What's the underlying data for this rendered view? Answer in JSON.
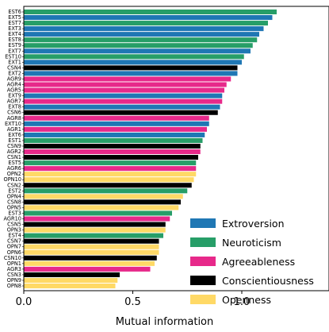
{
  "chart_data": {
    "type": "bar",
    "orientation": "horizontal",
    "xlabel": "Mutual information",
    "ylabel": "",
    "xlim": [
      0,
      1.4
    ],
    "x_ticks": [
      "0.0",
      "0.5",
      "1.0"
    ],
    "x_tick_values": [
      0,
      0.5,
      1.0
    ],
    "grid": false,
    "legend_position": "lower-right",
    "series": [
      {
        "name": "Extroversion",
        "color": "#1f77b4"
      },
      {
        "name": "Neuroticism",
        "color": "#279e68"
      },
      {
        "name": "Agreeableness",
        "color": "#e7298a"
      },
      {
        "name": "Conscientiousness",
        "color": "#000000"
      },
      {
        "name": "Openness",
        "color": "#ffd966"
      }
    ],
    "bars": [
      {
        "label": "EST6",
        "value": 1.16,
        "series": "Neuroticism"
      },
      {
        "label": "EXT5",
        "value": 1.14,
        "series": "Extroversion"
      },
      {
        "label": "EST7",
        "value": 1.12,
        "series": "Neuroticism"
      },
      {
        "label": "EXT3",
        "value": 1.1,
        "series": "Extroversion"
      },
      {
        "label": "EXT4",
        "value": 1.08,
        "series": "Extroversion"
      },
      {
        "label": "EST8",
        "value": 1.07,
        "series": "Neuroticism"
      },
      {
        "label": "EST9",
        "value": 1.05,
        "series": "Neuroticism"
      },
      {
        "label": "EXT7",
        "value": 1.04,
        "series": "Extroversion"
      },
      {
        "label": "EST10",
        "value": 1.01,
        "series": "Neuroticism"
      },
      {
        "label": "EXT1",
        "value": 1.0,
        "series": "Extroversion"
      },
      {
        "label": "CSN4",
        "value": 0.98,
        "series": "Conscientiousness"
      },
      {
        "label": "EXT2",
        "value": 0.98,
        "series": "Extroversion"
      },
      {
        "label": "AGR9",
        "value": 0.95,
        "series": "Agreeableness"
      },
      {
        "label": "AGR4",
        "value": 0.93,
        "series": "Agreeableness"
      },
      {
        "label": "AGR5",
        "value": 0.92,
        "series": "Agreeableness"
      },
      {
        "label": "EXT9",
        "value": 0.91,
        "series": "Extroversion"
      },
      {
        "label": "AGR7",
        "value": 0.91,
        "series": "Agreeableness"
      },
      {
        "label": "EXT8",
        "value": 0.9,
        "series": "Extroversion"
      },
      {
        "label": "CSN6",
        "value": 0.89,
        "series": "Conscientiousness"
      },
      {
        "label": "AGR8",
        "value": 0.85,
        "series": "Agreeableness"
      },
      {
        "label": "EXT10",
        "value": 0.85,
        "series": "Extroversion"
      },
      {
        "label": "AGR1",
        "value": 0.84,
        "series": "Agreeableness"
      },
      {
        "label": "EXT6",
        "value": 0.83,
        "series": "Extroversion"
      },
      {
        "label": "EST1",
        "value": 0.82,
        "series": "Neuroticism"
      },
      {
        "label": "CSN9",
        "value": 0.81,
        "series": "Conscientiousness"
      },
      {
        "label": "AGR2",
        "value": 0.81,
        "series": "Agreeableness"
      },
      {
        "label": "CSN1",
        "value": 0.8,
        "series": "Conscientiousness"
      },
      {
        "label": "EST5",
        "value": 0.79,
        "series": "Neuroticism"
      },
      {
        "label": "AGR6",
        "value": 0.79,
        "series": "Agreeableness"
      },
      {
        "label": "OPN2",
        "value": 0.79,
        "series": "Openness"
      },
      {
        "label": "OPN10",
        "value": 0.78,
        "series": "Openness"
      },
      {
        "label": "CSN2",
        "value": 0.77,
        "series": "Conscientiousness"
      },
      {
        "label": "EST2",
        "value": 0.75,
        "series": "Neuroticism"
      },
      {
        "label": "OPN4",
        "value": 0.73,
        "series": "Openness"
      },
      {
        "label": "CSN8",
        "value": 0.72,
        "series": "Conscientiousness"
      },
      {
        "label": "OPN5",
        "value": 0.71,
        "series": "Openness"
      },
      {
        "label": "EST3",
        "value": 0.68,
        "series": "Neuroticism"
      },
      {
        "label": "AGR10",
        "value": 0.67,
        "series": "Agreeableness"
      },
      {
        "label": "CSN5",
        "value": 0.65,
        "series": "Conscientiousness"
      },
      {
        "label": "OPN3",
        "value": 0.65,
        "series": "Openness"
      },
      {
        "label": "EST4",
        "value": 0.64,
        "series": "Neuroticism"
      },
      {
        "label": "CSN7",
        "value": 0.62,
        "series": "Conscientiousness"
      },
      {
        "label": "OPN7",
        "value": 0.62,
        "series": "Openness"
      },
      {
        "label": "OPN6",
        "value": 0.62,
        "series": "Openness"
      },
      {
        "label": "CSN10",
        "value": 0.61,
        "series": "Conscientiousness"
      },
      {
        "label": "OPN1",
        "value": 0.6,
        "series": "Openness"
      },
      {
        "label": "AGR3",
        "value": 0.58,
        "series": "Agreeableness"
      },
      {
        "label": "CSN3",
        "value": 0.44,
        "series": "Conscientiousness"
      },
      {
        "label": "OPN9",
        "value": 0.43,
        "series": "Openness"
      },
      {
        "label": "OPN8",
        "value": 0.42,
        "series": "Openness"
      }
    ]
  }
}
